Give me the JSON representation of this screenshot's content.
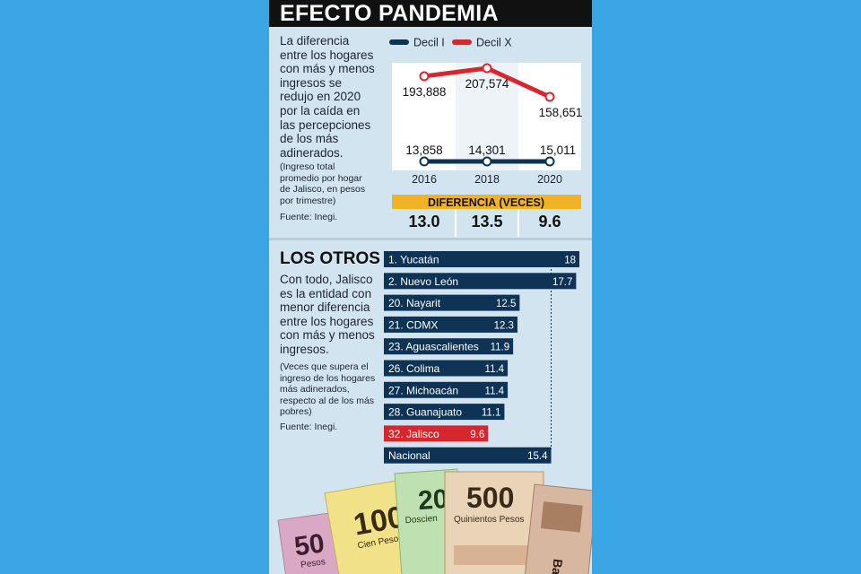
{
  "header": {
    "title": "EFECTO PANDEMIA"
  },
  "intro": {
    "lines": [
      "La diferencia",
      "entre los hogares",
      "con más y menos",
      "ingresos se",
      "redujo en 2020",
      "por la caída en",
      "las percepciones",
      "de los más",
      "adinerados."
    ],
    "note_lines": [
      "(Ingreso total",
      "promedio por hogar",
      "de Jalisco, en pesos",
      "por trimestre)"
    ],
    "source": "Fuente: Inegi."
  },
  "diferencia": {
    "label": "DIFERENCIA (VECES)",
    "values": [
      "13.0",
      "13.5",
      "9.6"
    ]
  },
  "otros": {
    "title": "LOS OTROS",
    "lines": [
      "Con todo, Jalisco",
      "es la entidad con",
      "menor diferencia",
      "entre los hogares",
      "con más y menos",
      "ingresos."
    ],
    "note_lines": [
      "(Veces que supera el",
      "ingreso de los hogares",
      "más adinerados,",
      "respecto al de los más",
      "pobres)"
    ],
    "source": "Fuente: Inegi."
  },
  "bills": {
    "labels": [
      "50",
      "Pesos",
      "100",
      "Cien Pesos",
      "20",
      "Doscien",
      "500",
      "Quinientos Pesos",
      "Banco"
    ]
  },
  "colors": {
    "navy": "#0e3355",
    "red": "#d7262e",
    "yellow": "#f0b323",
    "panel": "#d3e4f1",
    "background": "#3aa6e4"
  },
  "chart_data": [
    {
      "type": "line",
      "x": [
        "2016",
        "2018",
        "2020"
      ],
      "series": [
        {
          "name": "Decil I",
          "values": [
            13858,
            14301,
            15011
          ],
          "labels": [
            "13,858",
            "14,301",
            "15,011"
          ],
          "color": "#0e3355"
        },
        {
          "name": "Decil X",
          "values": [
            193888,
            207574,
            158651
          ],
          "labels": [
            "193,888",
            "207,574",
            "158,651"
          ],
          "color": "#d7262e"
        }
      ]
    },
    {
      "type": "bar",
      "orientation": "horizontal",
      "categories": [
        "1. Yucatán",
        "2. Nuevo León",
        "20. Nayarit",
        "21. CDMX",
        "23. Aguascalientes",
        "26. Colima",
        "27. Michoacán",
        "28. Guanajuato",
        "32. Jalisco",
        "Nacional"
      ],
      "values": [
        18,
        17.7,
        12.5,
        12.3,
        11.9,
        11.4,
        11.4,
        11.1,
        9.6,
        15.4
      ],
      "value_labels": [
        "18",
        "17.7",
        "12.5",
        "12.3",
        "11.9",
        "11.4",
        "11.4",
        "11.1",
        "9.6",
        "15.4"
      ],
      "highlight": "32. Jalisco"
    }
  ]
}
